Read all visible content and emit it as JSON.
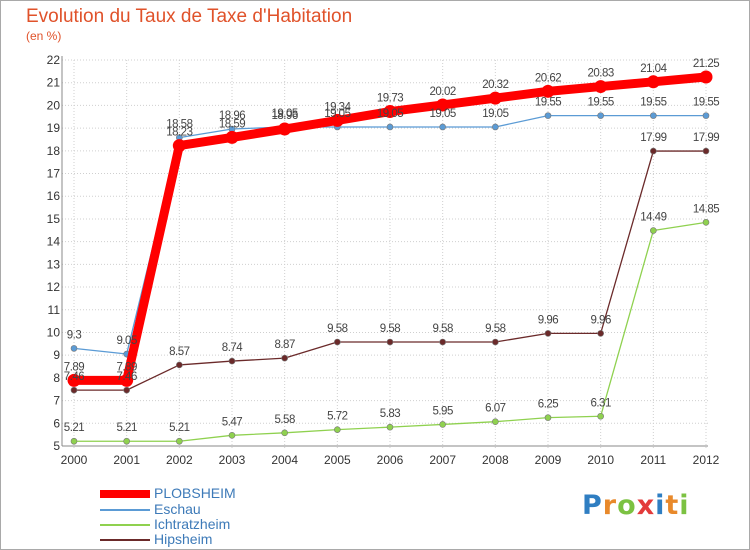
{
  "title": "Evolution du Taux de Taxe d'Habitation",
  "unit_label": "(en %)",
  "logo_text": "Proxiti",
  "chart_data": {
    "type": "line",
    "title": "Evolution du Taux de Taxe d'Habitation",
    "ylabel": "(en %)",
    "xlabel": "",
    "x": [
      "2000",
      "2001",
      "2002",
      "2003",
      "2004",
      "2005",
      "2006",
      "2007",
      "2008",
      "2009",
      "2010",
      "2011",
      "2012"
    ],
    "ylim": [
      5,
      22
    ],
    "yticks": [
      "5",
      "6",
      "7",
      "8",
      "9",
      "10",
      "11",
      "12",
      "13",
      "14",
      "15",
      "16",
      "17",
      "18",
      "19",
      "20",
      "21",
      "22"
    ],
    "grid": true,
    "legend_position": "bottom-left",
    "series": [
      {
        "name": "PLOBSHEIM",
        "color": "#ff0000",
        "values": [
          7.89,
          7.89,
          18.23,
          18.59,
          18.96,
          19.34,
          19.73,
          20.02,
          20.32,
          20.62,
          20.83,
          21.04,
          21.25
        ],
        "labels": [
          "7.89",
          "7.89",
          "18.23",
          "18.59",
          "18.96",
          "19.34",
          "19.73",
          "20.02",
          "20.32",
          "20.62",
          "20.83",
          "21.04",
          "21.25"
        ]
      },
      {
        "name": "Eschau",
        "color": "#5b9bd5",
        "values": [
          9.3,
          9.05,
          18.58,
          18.96,
          19.05,
          19.05,
          19.05,
          19.05,
          19.05,
          19.55,
          19.55,
          19.55,
          19.55
        ],
        "labels": [
          "9.3",
          "9.05",
          "18.58",
          "18.96",
          "19.05",
          "19.05",
          "19.05",
          "19.05",
          "19.05",
          "19.55",
          "19.55",
          "19.55",
          "19.55"
        ]
      },
      {
        "name": "Ichtratzheim",
        "color": "#8fd14f",
        "values": [
          5.21,
          5.21,
          5.21,
          5.47,
          5.58,
          5.72,
          5.83,
          5.95,
          6.07,
          6.25,
          6.31,
          14.49,
          14.85
        ],
        "labels": [
          "5.21",
          "5.21",
          "5.21",
          "5.47",
          "5.58",
          "5.72",
          "5.83",
          "5.95",
          "6.07",
          "6.25",
          "6.31",
          "14.49",
          "14.85"
        ]
      },
      {
        "name": "Hipsheim",
        "color": "#6b2a2a",
        "values": [
          7.46,
          7.46,
          8.57,
          8.74,
          8.87,
          9.58,
          9.58,
          9.58,
          9.58,
          9.96,
          9.96,
          17.99,
          17.99
        ],
        "labels": [
          "7.46",
          "7.46",
          "8.57",
          "8.74",
          "8.87",
          "9.58",
          "9.58",
          "9.58",
          "9.58",
          "9.96",
          "9.96",
          "17.99",
          "17.99"
        ]
      }
    ]
  }
}
